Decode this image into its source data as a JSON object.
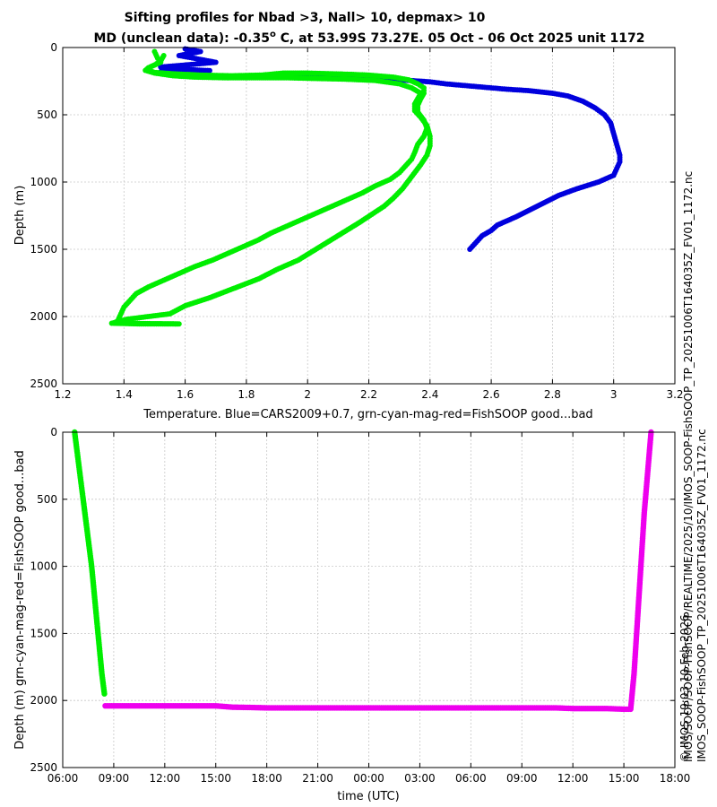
{
  "chart_data": [
    {
      "type": "scatter",
      "title": "Sifting profiles for Nbad >3, Nall> 10, depmax> 10",
      "subtitle_pre": "MD (unclean data): -0.35",
      "subtitle_sup": "o",
      "subtitle_post": " C, at 53.99S 73.27E. 05 Oct - 06 Oct 2025 unit 1172",
      "xlabel": "Temperature. Blue=CARS2009+0.7, grn-cyan-mag-red=FishSOOP good...bad",
      "ylabel": "Depth (m)",
      "xlim": [
        1.2,
        3.2
      ],
      "ylim": [
        2500,
        0
      ],
      "x_ticks": [
        1.2,
        1.4,
        1.6,
        1.8,
        2,
        2.2,
        2.4,
        2.6,
        2.8,
        3,
        3.2
      ],
      "x_tick_labels": [
        "1.2",
        "1.4",
        "1.6",
        "1.8",
        "2",
        "2.2",
        "2.4",
        "2.6",
        "2.8",
        "3",
        "3.2"
      ],
      "y_ticks": [
        0,
        500,
        1000,
        1500,
        2000,
        2500
      ],
      "y_tick_labels": [
        "0",
        "500",
        "1000",
        "1500",
        "2000",
        "2500"
      ],
      "grid": true,
      "series": [
        {
          "color": "#0000dd",
          "points": [
            [
              1.6,
              10
            ],
            [
              1.65,
              30
            ],
            [
              1.58,
              60
            ],
            [
              1.63,
              80
            ],
            [
              1.7,
              110
            ],
            [
              1.6,
              130
            ],
            [
              1.52,
              145
            ],
            [
              1.55,
              160
            ],
            [
              1.62,
              165
            ],
            [
              1.68,
              172
            ],
            [
              1.57,
              178
            ],
            [
              1.52,
              180
            ],
            [
              1.55,
              200
            ],
            [
              1.6,
              205
            ],
            [
              1.65,
              210
            ],
            [
              1.72,
              215
            ],
            [
              1.8,
              218
            ],
            [
              1.9,
              222
            ],
            [
              2.0,
              225
            ],
            [
              2.1,
              230
            ],
            [
              2.2,
              233
            ],
            [
              2.3,
              240
            ],
            [
              2.4,
              255
            ],
            [
              2.45,
              270
            ],
            [
              2.5,
              280
            ],
            [
              2.55,
              290
            ],
            [
              2.6,
              300
            ],
            [
              2.65,
              310
            ],
            [
              2.72,
              320
            ],
            [
              2.8,
              340
            ],
            [
              2.85,
              360
            ],
            [
              2.9,
              400
            ],
            [
              2.94,
              450
            ],
            [
              2.97,
              500
            ],
            [
              2.99,
              560
            ],
            [
              3.0,
              640
            ],
            [
              3.01,
              720
            ],
            [
              3.02,
              800
            ],
            [
              3.02,
              850
            ],
            [
              3.01,
              900
            ],
            [
              3.0,
              950
            ],
            [
              2.95,
              1000
            ],
            [
              2.88,
              1050
            ],
            [
              2.82,
              1100
            ],
            [
              2.75,
              1180
            ],
            [
              2.68,
              1260
            ],
            [
              2.62,
              1320
            ],
            [
              2.6,
              1360
            ],
            [
              2.57,
              1400
            ],
            [
              2.55,
              1450
            ],
            [
              2.53,
              1500
            ]
          ]
        },
        {
          "color": "#00ee00",
          "points": [
            [
              1.5,
              30
            ],
            [
              1.51,
              80
            ],
            [
              1.52,
              110
            ],
            [
              1.49,
              140
            ],
            [
              1.48,
              170
            ],
            [
              1.5,
              185
            ],
            [
              1.56,
              195
            ],
            [
              1.65,
              205
            ],
            [
              1.75,
              210
            ],
            [
              1.85,
              205
            ],
            [
              1.92,
              190
            ],
            [
              2.0,
              190
            ],
            [
              2.08,
              195
            ],
            [
              2.15,
              200
            ],
            [
              2.2,
              205
            ],
            [
              2.28,
              220
            ],
            [
              2.33,
              240
            ],
            [
              2.36,
              270
            ],
            [
              2.38,
              300
            ],
            [
              2.38,
              340
            ],
            [
              2.37,
              380
            ],
            [
              2.36,
              430
            ],
            [
              2.36,
              480
            ],
            [
              2.38,
              540
            ],
            [
              2.39,
              600
            ],
            [
              2.38,
              660
            ],
            [
              2.36,
              720
            ],
            [
              2.35,
              780
            ],
            [
              2.34,
              830
            ],
            [
              2.32,
              880
            ],
            [
              2.3,
              930
            ],
            [
              2.27,
              980
            ],
            [
              2.22,
              1030
            ],
            [
              2.18,
              1080
            ],
            [
              2.13,
              1130
            ],
            [
              2.08,
              1180
            ],
            [
              2.03,
              1230
            ],
            [
              1.98,
              1280
            ],
            [
              1.93,
              1330
            ],
            [
              1.88,
              1380
            ],
            [
              1.84,
              1430
            ],
            [
              1.79,
              1480
            ],
            [
              1.74,
              1530
            ],
            [
              1.69,
              1580
            ],
            [
              1.63,
              1630
            ],
            [
              1.58,
              1680
            ],
            [
              1.53,
              1730
            ],
            [
              1.48,
              1780
            ],
            [
              1.44,
              1830
            ],
            [
              1.42,
              1880
            ],
            [
              1.4,
              1930
            ],
            [
              1.39,
              1980
            ],
            [
              1.38,
              2030
            ],
            [
              1.37,
              2050
            ],
            [
              1.45,
              2055
            ],
            [
              1.52,
              2055
            ],
            [
              1.58,
              2055
            ],
            [
              1.36,
              2050
            ],
            [
              1.41,
              2020
            ],
            [
              1.55,
              1980
            ],
            [
              1.6,
              1920
            ],
            [
              1.68,
              1860
            ],
            [
              1.76,
              1790
            ],
            [
              1.84,
              1720
            ],
            [
              1.9,
              1650
            ],
            [
              1.97,
              1580
            ],
            [
              2.02,
              1510
            ],
            [
              2.07,
              1440
            ],
            [
              2.12,
              1370
            ],
            [
              2.17,
              1300
            ],
            [
              2.21,
              1240
            ],
            [
              2.25,
              1180
            ],
            [
              2.28,
              1120
            ],
            [
              2.31,
              1050
            ],
            [
              2.33,
              990
            ],
            [
              2.35,
              930
            ],
            [
              2.37,
              870
            ],
            [
              2.39,
              800
            ],
            [
              2.4,
              730
            ],
            [
              2.4,
              660
            ],
            [
              2.39,
              580
            ],
            [
              2.37,
              520
            ],
            [
              2.35,
              470
            ],
            [
              2.35,
              420
            ],
            [
              2.36,
              380
            ],
            [
              2.37,
              340
            ],
            [
              2.34,
              300
            ],
            [
              2.3,
              270
            ],
            [
              2.22,
              245
            ],
            [
              2.12,
              235
            ],
            [
              2.02,
              230
            ],
            [
              1.93,
              225
            ],
            [
              1.83,
              225
            ],
            [
              1.73,
              225
            ],
            [
              1.63,
              220
            ],
            [
              1.56,
              210
            ],
            [
              1.5,
              190
            ],
            [
              1.47,
              170
            ],
            [
              1.48,
              150
            ],
            [
              1.5,
              130
            ],
            [
              1.52,
              100
            ],
            [
              1.53,
              60
            ]
          ]
        }
      ]
    },
    {
      "type": "scatter",
      "xlabel": "time (UTC)",
      "ylabel": "Depth (m) grn-cyan-mag-red=FishSOOP good...bad",
      "xlim": [
        6,
        42
      ],
      "ylim": [
        2500,
        0
      ],
      "x_ticks": [
        6,
        9,
        12,
        15,
        18,
        21,
        24,
        27,
        30,
        33,
        36,
        39,
        42
      ],
      "x_tick_labels": [
        "06:00",
        "09:00",
        "12:00",
        "15:00",
        "18:00",
        "21:00",
        "00:00",
        "03:00",
        "06:00",
        "09:00",
        "12:00",
        "15:00",
        "18:00"
      ],
      "y_ticks": [
        0,
        500,
        1000,
        1500,
        2000,
        2500
      ],
      "y_tick_labels": [
        "0",
        "500",
        "1000",
        "1500",
        "2000",
        "2500"
      ],
      "grid": true,
      "series": [
        {
          "color": "#00ee00",
          "points": [
            [
              6.7,
              0
            ],
            [
              6.9,
              200
            ],
            [
              7.1,
              400
            ],
            [
              7.3,
              600
            ],
            [
              7.5,
              800
            ],
            [
              7.7,
              1000
            ],
            [
              7.85,
              1200
            ],
            [
              8.0,
              1400
            ],
            [
              8.15,
              1600
            ],
            [
              8.3,
              1800
            ],
            [
              8.45,
              1950
            ]
          ]
        },
        {
          "color": "#ee00ee",
          "points": [
            [
              8.5,
              2040
            ],
            [
              9,
              2040
            ],
            [
              10,
              2040
            ],
            [
              11,
              2040
            ],
            [
              12,
              2040
            ],
            [
              13,
              2040
            ],
            [
              14,
              2040
            ],
            [
              15,
              2040
            ],
            [
              16,
              2050
            ],
            [
              17,
              2052
            ],
            [
              18,
              2055
            ],
            [
              19,
              2055
            ],
            [
              20,
              2055
            ],
            [
              21,
              2055
            ],
            [
              22,
              2055
            ],
            [
              23,
              2055
            ],
            [
              24,
              2055
            ],
            [
              25,
              2055
            ],
            [
              26,
              2055
            ],
            [
              27,
              2055
            ],
            [
              28,
              2055
            ],
            [
              29,
              2055
            ],
            [
              30,
              2055
            ],
            [
              31,
              2055
            ],
            [
              32,
              2055
            ],
            [
              33,
              2055
            ],
            [
              34,
              2055
            ],
            [
              35,
              2055
            ],
            [
              36,
              2060
            ],
            [
              37,
              2060
            ],
            [
              38,
              2060
            ],
            [
              39,
              2065
            ],
            [
              39.4,
              2065
            ],
            [
              39.6,
              1800
            ],
            [
              39.8,
              1400
            ],
            [
              40.0,
              1000
            ],
            [
              40.2,
              600
            ],
            [
              40.4,
              300
            ],
            [
              40.6,
              0
            ]
          ]
        }
      ]
    }
  ],
  "side_text": [
    "IMOS_SOOP-FishSOOP_TP_20251006T164035Z_FV01_1172.nc",
    "IMOS/SOOP/SOOP-FishSOOP/REALTIME/2025/10/IMOS_SOOP-FishSOOP_TP_20251006T164035Z_FV01_1172.nc",
    "© IMOS 19:03 10-Feb-2026"
  ]
}
